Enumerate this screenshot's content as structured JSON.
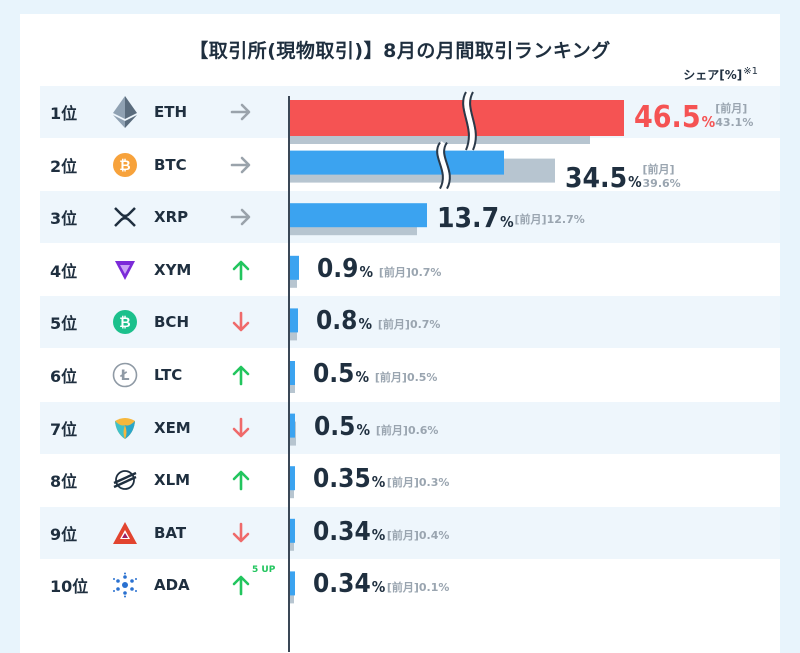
{
  "title": "【取引所(現物取引)】8月の月間取引ランキング",
  "share_label": "シェア[%]",
  "share_note": "※1",
  "prev_label": "[前月]",
  "colors": {
    "highlight": "#f55353",
    "current": "#3ba3f0",
    "previous": "#b7c5d0",
    "up": "#22c55e",
    "down": "#ef6a6a",
    "flat": "#9aa3ab"
  },
  "chart_data": {
    "type": "bar",
    "orientation": "horizontal",
    "axis_break": true,
    "unit": "%",
    "categories": [
      "ETH",
      "BTC",
      "XRP",
      "XYM",
      "BCH",
      "LTC",
      "XEM",
      "XLM",
      "BAT",
      "ADA"
    ],
    "ranks": [
      "1位",
      "2位",
      "3位",
      "4位",
      "5位",
      "6位",
      "7位",
      "8位",
      "9位",
      "10位"
    ],
    "series": [
      {
        "name": "",
        "values": [
          46.5,
          34.5,
          13.7,
          0.9,
          0.8,
          0.5,
          0.5,
          0.35,
          0.34,
          0.34
        ]
      },
      {
        "name": "前月",
        "values": [
          43.1,
          39.6,
          12.7,
          0.7,
          0.7,
          0.5,
          0.6,
          0.3,
          0.4,
          0.1
        ]
      }
    ],
    "value_labels": [
      "46.5",
      "34.5",
      "13.7",
      "0.9",
      "0.8",
      "0.5",
      "0.5",
      "0.35",
      "0.34",
      "0.34"
    ],
    "prev_labels": [
      "43.1%",
      "39.6%",
      "12.7%",
      "0.7%",
      "0.7%",
      "0.5%",
      "0.6%",
      "0.3%",
      "0.4%",
      "0.1%"
    ],
    "trend": [
      "flat",
      "flat",
      "flat",
      "up",
      "down",
      "up",
      "down",
      "up",
      "down",
      "up"
    ],
    "trend_note": [
      "",
      "",
      "",
      "",
      "",
      "",
      "",
      "",
      "",
      "5 UP"
    ],
    "icons": [
      "ethereum-icon",
      "bitcoin-icon",
      "xrp-icon",
      "symbol-icon",
      "bitcoin-cash-icon",
      "litecoin-icon",
      "nem-icon",
      "stellar-icon",
      "bat-icon",
      "cardano-icon"
    ]
  }
}
